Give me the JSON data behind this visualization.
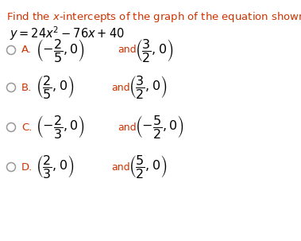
{
  "title_text": "Find the $x$-intercepts of the graph of the equation shown below.",
  "title_color": "#CC3300",
  "equation": "$y = 24x^2 - 76x + 40$",
  "equation_color": "#000000",
  "background_color": "#ffffff",
  "options": [
    {
      "label": "A.",
      "text1": "$\\left(-\\dfrac{2}{5},0\\right)$",
      "and_text": "and",
      "text2": "$\\left(\\dfrac{3}{2},0\\right)$"
    },
    {
      "label": "B.",
      "text1": "$\\left(\\dfrac{2}{5},0\\right)$",
      "and_text": "and",
      "text2": "$\\left(\\dfrac{3}{2},0\\right)$"
    },
    {
      "label": "C.",
      "text1": "$\\left(-\\dfrac{2}{3},0\\right)$",
      "and_text": "and",
      "text2": "$\\left(-\\dfrac{5}{2},0\\right)$"
    },
    {
      "label": "D.",
      "text1": "$\\left(\\dfrac{2}{3},0\\right)$",
      "and_text": "and",
      "text2": "$\\left(\\dfrac{5}{2},0\\right)$"
    }
  ],
  "circle_color": "#999999",
  "label_color": "#CC3300",
  "text_color": "#000000",
  "and_color": "#CC3300",
  "font_size_title": 9.5,
  "font_size_eq": 10.5,
  "font_size_options": 11.5,
  "font_size_label": 9.5,
  "font_size_and": 9.0
}
